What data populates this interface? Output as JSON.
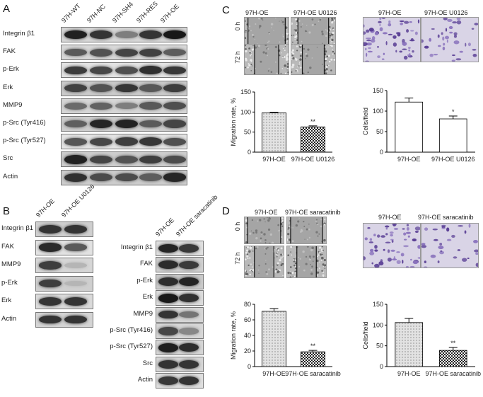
{
  "panelA": {
    "letter": "A",
    "lanes": [
      "97H-WT",
      "97H-NC",
      "97H-SH4",
      "97H-RES",
      "97H-OE"
    ],
    "rows": [
      "Integrin β1",
      "FAK",
      "p-Erk",
      "Erk",
      "MMP9",
      "p-Src (Tyr416)",
      "p-Src (Tyr527)",
      "Src",
      "Actin"
    ]
  },
  "panelB": {
    "letter": "B",
    "left": {
      "lanes": [
        "97H-OE",
        "97H-OE U0126"
      ],
      "rows": [
        "Integrin β1",
        "FAK",
        "MMP9",
        "p-Erk",
        "Erk",
        "Actin"
      ]
    },
    "right": {
      "lanes": [
        "97H-OE",
        "97H-OE saracatinib"
      ],
      "rows": [
        "Integrin β1",
        "FAK",
        "p-Erk",
        "Erk",
        "MMP9",
        "p-Src (Tyr416)",
        "p-Src (Tyr527)",
        "Src",
        "Actin"
      ]
    }
  },
  "panelC": {
    "letter": "C",
    "wound_titles": [
      "97H-OE",
      "97H-OE U0126"
    ],
    "time_labels": [
      "0 h",
      "72 h"
    ],
    "transwell_titles": [
      "97H-OE",
      "97H-OE U0126"
    ]
  },
  "panelD": {
    "letter": "D",
    "wound_titles": [
      "97H-OE",
      "97H-OE saracatinib"
    ],
    "time_labels": [
      "0 h",
      "72 h"
    ],
    "transwell_titles": [
      "97H-OE",
      "97H-OE saracatinib"
    ]
  },
  "chart_data": [
    {
      "type": "bar",
      "panel": "C-migration",
      "categories": [
        "97H-OE",
        "97H-OE U0126"
      ],
      "values": [
        98,
        63
      ],
      "errors": [
        1.5,
        2.5
      ],
      "ylabel": "Migration rate, %",
      "ylim": [
        0,
        150
      ],
      "yticks": [
        0,
        50,
        100,
        150
      ],
      "annotations": [
        "",
        "**"
      ]
    },
    {
      "type": "bar",
      "panel": "C-invasion",
      "categories": [
        "97H-OE",
        "97H-OE U0126"
      ],
      "values": [
        122,
        81
      ],
      "errors": [
        10,
        7
      ],
      "ylabel": "Cells/field",
      "ylim": [
        0,
        150
      ],
      "yticks": [
        0,
        50,
        100,
        150
      ],
      "annotations": [
        "",
        "*"
      ]
    },
    {
      "type": "bar",
      "panel": "D-migration",
      "categories": [
        "97H-OE",
        "97H-OE saracatinib"
      ],
      "values": [
        71,
        19
      ],
      "errors": [
        3.5,
        1.8
      ],
      "ylabel": "Migration rate, %",
      "ylim": [
        0,
        80
      ],
      "yticks": [
        0,
        20,
        40,
        60,
        80
      ],
      "annotations": [
        "",
        "**"
      ]
    },
    {
      "type": "bar",
      "panel": "D-invasion",
      "categories": [
        "97H-OE",
        "97H-OE saracatinib"
      ],
      "values": [
        106,
        39
      ],
      "errors": [
        10,
        7
      ],
      "ylabel": "Cells/field",
      "ylim": [
        0,
        150
      ],
      "yticks": [
        0,
        50,
        100,
        150
      ],
      "annotations": [
        "",
        "**"
      ]
    }
  ]
}
